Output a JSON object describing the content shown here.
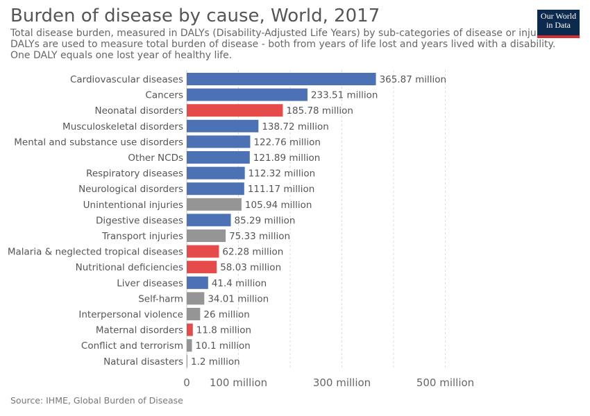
{
  "header": {
    "title": "Burden of disease by cause, World, 2017",
    "subtitle_lines": [
      "Total disease burden, measured in DALYs (Disability-Adjusted Life Years) by sub-categories of disease or injury.",
      "DALYs are used to measure total burden of disease - both from years of life lost and years lived with a disability.",
      "One DALY equals one lost year of healthy life."
    ],
    "logo_line1": "Our World",
    "logo_line2": "in Data"
  },
  "footer": {
    "source": "Source: IHME, Global Burden of Disease"
  },
  "colors": {
    "ncd": "#4c72b5",
    "communicable": "#e64b4b",
    "injury": "#959595",
    "label": "#555555",
    "grid": "#dddddd",
    "logo_bg": "#0b2a4d",
    "logo_accent": "#d32f34"
  },
  "chart_data": {
    "type": "bar",
    "orientation": "horizontal",
    "unit": "million",
    "categories": [
      "Cardiovascular diseases",
      "Cancers",
      "Neonatal disorders",
      "Musculoskeletal disorders",
      "Mental and substance use disorders",
      "Other NCDs",
      "Respiratory diseases",
      "Neurological disorders",
      "Unintentional injuries",
      "Digestive diseases",
      "Transport injuries",
      "Malaria & neglected tropical diseases",
      "Nutritional deficiencies",
      "Liver diseases",
      "Self-harm",
      "Interpersonal violence",
      "Maternal disorders",
      "Conflict and terrorism",
      "Natural disasters"
    ],
    "values": [
      365.87,
      233.51,
      185.78,
      138.72,
      122.76,
      121.89,
      112.32,
      111.17,
      105.94,
      85.29,
      75.33,
      62.28,
      58.03,
      41.4,
      34.01,
      26,
      11.8,
      10.1,
      1.2
    ],
    "value_labels": [
      "365.87 million",
      "233.51 million",
      "185.78 million",
      "138.72 million",
      "122.76 million",
      "121.89 million",
      "112.32 million",
      "111.17 million",
      "105.94 million",
      "85.29 million",
      "75.33 million",
      "62.28 million",
      "58.03 million",
      "41.4 million",
      "34.01 million",
      "26 million",
      "11.8 million",
      "10.1 million",
      "1.2 million"
    ],
    "groups": [
      "ncd",
      "ncd",
      "communicable",
      "ncd",
      "ncd",
      "ncd",
      "ncd",
      "ncd",
      "injury",
      "ncd",
      "injury",
      "communicable",
      "communicable",
      "ncd",
      "injury",
      "injury",
      "communicable",
      "injury",
      "injury"
    ],
    "x_ticks": [
      {
        "value": 0,
        "label": "0"
      },
      {
        "value": 100,
        "label": "100 million"
      },
      {
        "value": 300,
        "label": "300 million"
      },
      {
        "value": 500,
        "label": "500 million"
      }
    ],
    "x_gridlines": [
      100,
      200,
      300,
      400,
      500
    ],
    "xlim": [
      0,
      500
    ],
    "grid": true,
    "legend": "none"
  }
}
